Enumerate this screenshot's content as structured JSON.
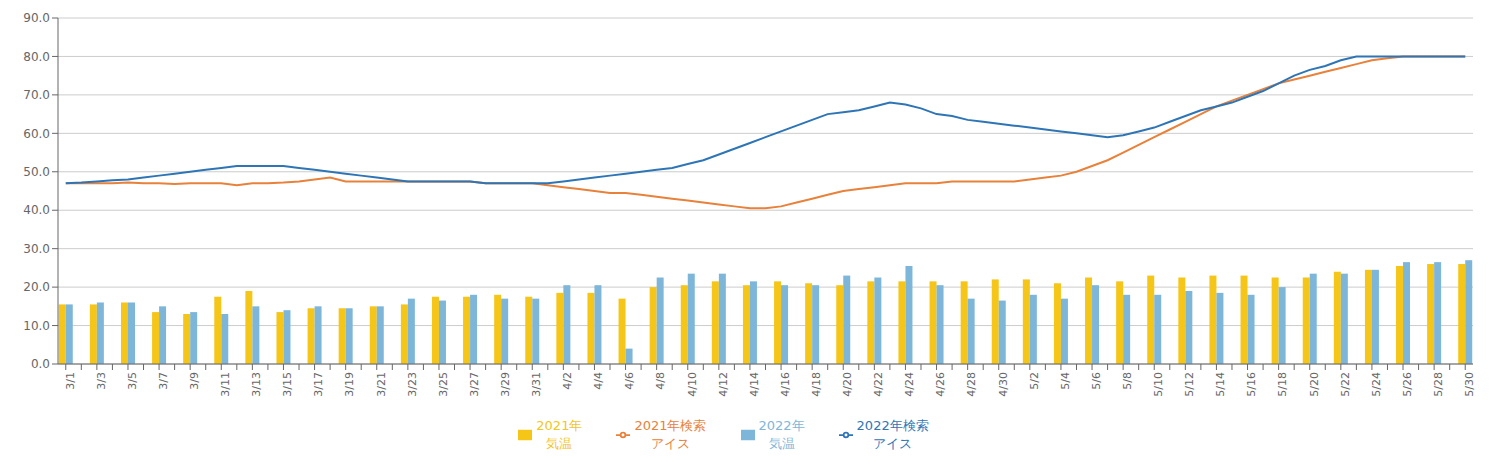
{
  "chart_data": {
    "type": "bar",
    "categories": [
      "3/1",
      null,
      "3/3",
      null,
      "3/5",
      null,
      "3/7",
      null,
      "3/9",
      null,
      "3/11",
      null,
      "3/13",
      null,
      "3/15",
      null,
      "3/17",
      null,
      "3/19",
      null,
      "3/21",
      null,
      "3/23",
      null,
      "3/25",
      null,
      "3/27",
      null,
      "3/29",
      null,
      "3/31",
      null,
      "4/2",
      null,
      "4/4",
      null,
      "4/6",
      null,
      "4/8",
      null,
      "4/10",
      null,
      "4/12",
      null,
      "4/14",
      null,
      "4/16",
      null,
      "4/18",
      null,
      "4/20",
      null,
      "4/22",
      null,
      "4/24",
      null,
      "4/26",
      null,
      "4/28",
      null,
      "4/30",
      null,
      "5/2",
      null,
      "5/4",
      null,
      "5/6",
      null,
      "5/8",
      null,
      "5/10",
      null,
      "5/12",
      null,
      "5/14",
      null,
      "5/16",
      null,
      "5/18",
      null,
      "5/20",
      null,
      "5/22",
      null,
      "5/24",
      null,
      "5/26",
      null,
      "5/28",
      null,
      "5/30"
    ],
    "series": [
      {
        "name": "2021年\n気温",
        "type": "bar",
        "color": "#F5C518",
        "values": [
          15.5,
          null,
          15.5,
          null,
          16.0,
          null,
          13.5,
          null,
          13.0,
          null,
          17.5,
          null,
          19.0,
          null,
          13.5,
          null,
          14.5,
          null,
          14.5,
          null,
          15.0,
          null,
          15.5,
          null,
          17.5,
          null,
          17.5,
          null,
          18.0,
          null,
          17.5,
          null,
          18.5,
          null,
          18.5,
          null,
          17.0,
          null,
          20.0,
          null,
          20.5,
          null,
          21.5,
          null,
          20.5,
          null,
          21.5,
          null,
          21.0,
          null,
          20.5,
          null,
          21.5,
          null,
          21.5,
          null,
          21.5,
          null,
          21.5,
          null,
          22.0,
          null,
          22.0,
          null,
          21.0,
          null,
          22.5,
          null,
          21.5,
          null,
          23.0,
          null,
          22.5,
          null,
          23.0,
          null,
          23.0,
          null,
          22.5,
          null,
          22.5,
          null,
          24.0,
          null,
          24.5,
          null,
          25.5,
          null,
          26.0,
          null,
          26.0
        ]
      },
      {
        "name": "2022年\n気温",
        "type": "bar",
        "color": "#7EB6D9",
        "values": [
          15.5,
          null,
          16.0,
          null,
          16.0,
          null,
          15.0,
          null,
          13.5,
          null,
          13.0,
          null,
          15.0,
          null,
          14.0,
          null,
          15.0,
          null,
          14.5,
          null,
          15.0,
          null,
          17.0,
          null,
          16.5,
          null,
          18.0,
          null,
          17.0,
          null,
          17.0,
          null,
          20.5,
          null,
          20.5,
          null,
          4.0,
          null,
          22.5,
          null,
          23.5,
          null,
          23.5,
          null,
          21.5,
          null,
          20.5,
          null,
          20.5,
          null,
          23.0,
          null,
          22.5,
          null,
          25.5,
          null,
          20.5,
          null,
          17.0,
          null,
          16.5,
          null,
          18.0,
          null,
          17.0,
          null,
          20.5,
          null,
          18.0,
          null,
          18.0,
          null,
          19.0,
          null,
          18.5,
          null,
          18.0,
          null,
          20.0,
          null,
          23.5,
          null,
          23.5,
          null,
          24.5,
          null,
          26.5,
          null,
          26.5,
          null,
          27.0
        ]
      },
      {
        "name": "2021年検索\nアイス",
        "type": "line",
        "color": "#E8813A",
        "values": [
          47.0,
          47.0,
          47.0,
          47.0,
          47.2,
          47.0,
          47.0,
          46.8,
          47.0,
          47.0,
          47.0,
          46.5,
          47.0,
          47.0,
          47.2,
          47.5,
          48.0,
          48.5,
          47.5,
          47.5,
          47.5,
          47.5,
          47.5,
          47.5,
          47.5,
          47.5,
          47.5,
          47.0,
          47.0,
          47.0,
          47.0,
          46.5,
          46.0,
          45.5,
          45.0,
          44.5,
          44.5,
          44.0,
          43.5,
          43.0,
          42.5,
          42.0,
          41.5,
          41.0,
          40.5,
          40.5,
          41.0,
          42.0,
          43.0,
          44.0,
          45.0,
          45.5,
          46.0,
          46.5,
          47.0,
          47.0,
          47.0,
          47.5,
          47.5,
          47.5,
          47.5,
          47.5,
          48.0,
          48.5,
          49.0,
          50.0,
          51.5,
          53.0,
          55.0,
          57.0,
          59.0,
          61.0,
          63.0,
          65.0,
          67.0,
          68.5,
          70.0,
          71.5,
          73.0,
          74.0,
          75.0,
          76.0,
          77.0,
          78.0,
          79.0,
          79.5,
          80.0,
          80.0,
          80.0,
          80.0,
          80.0
        ]
      },
      {
        "name": "2022年検索\nアイス",
        "type": "line",
        "color": "#2E75B6",
        "values": [
          47.0,
          47.2,
          47.5,
          47.8,
          48.0,
          48.5,
          49.0,
          49.5,
          50.0,
          50.5,
          51.0,
          51.5,
          51.5,
          51.5,
          51.5,
          51.0,
          50.5,
          50.0,
          49.5,
          49.0,
          48.5,
          48.0,
          47.5,
          47.5,
          47.5,
          47.5,
          47.5,
          47.0,
          47.0,
          47.0,
          47.0,
          47.0,
          47.5,
          48.0,
          48.5,
          49.0,
          49.5,
          50.0,
          50.5,
          51.0,
          52.0,
          53.0,
          54.5,
          56.0,
          57.5,
          59.0,
          60.5,
          62.0,
          63.5,
          65.0,
          65.5,
          66.0,
          67.0,
          68.0,
          67.5,
          66.5,
          65.0,
          64.5,
          63.5,
          63.0,
          62.5,
          62.0,
          61.5,
          61.0,
          60.5,
          60.0,
          59.5,
          59.0,
          59.5,
          60.5,
          61.5,
          63.0,
          64.5,
          66.0,
          67.0,
          68.0,
          69.5,
          71.0,
          73.0,
          75.0,
          76.5,
          77.5,
          79.0,
          80.0,
          80.0,
          80.0,
          80.0,
          80.0,
          80.0,
          80.0,
          80.0
        ]
      }
    ],
    "ylim": [
      0,
      90
    ],
    "yticks": [
      {
        "value": 0,
        "label": "0.0"
      },
      {
        "value": 10,
        "label": "10.0"
      },
      {
        "value": 20,
        "label": "20.0"
      },
      {
        "value": 30,
        "label": "30.0"
      },
      {
        "value": 40,
        "label": "40.0"
      },
      {
        "value": 50,
        "label": "50.0"
      },
      {
        "value": 60,
        "label": "60.0"
      },
      {
        "value": 70,
        "label": "70.0"
      },
      {
        "value": 80,
        "label": "80.0"
      },
      {
        "value": 90,
        "label": "90.0"
      }
    ],
    "grid": true,
    "legend": "bottom"
  }
}
